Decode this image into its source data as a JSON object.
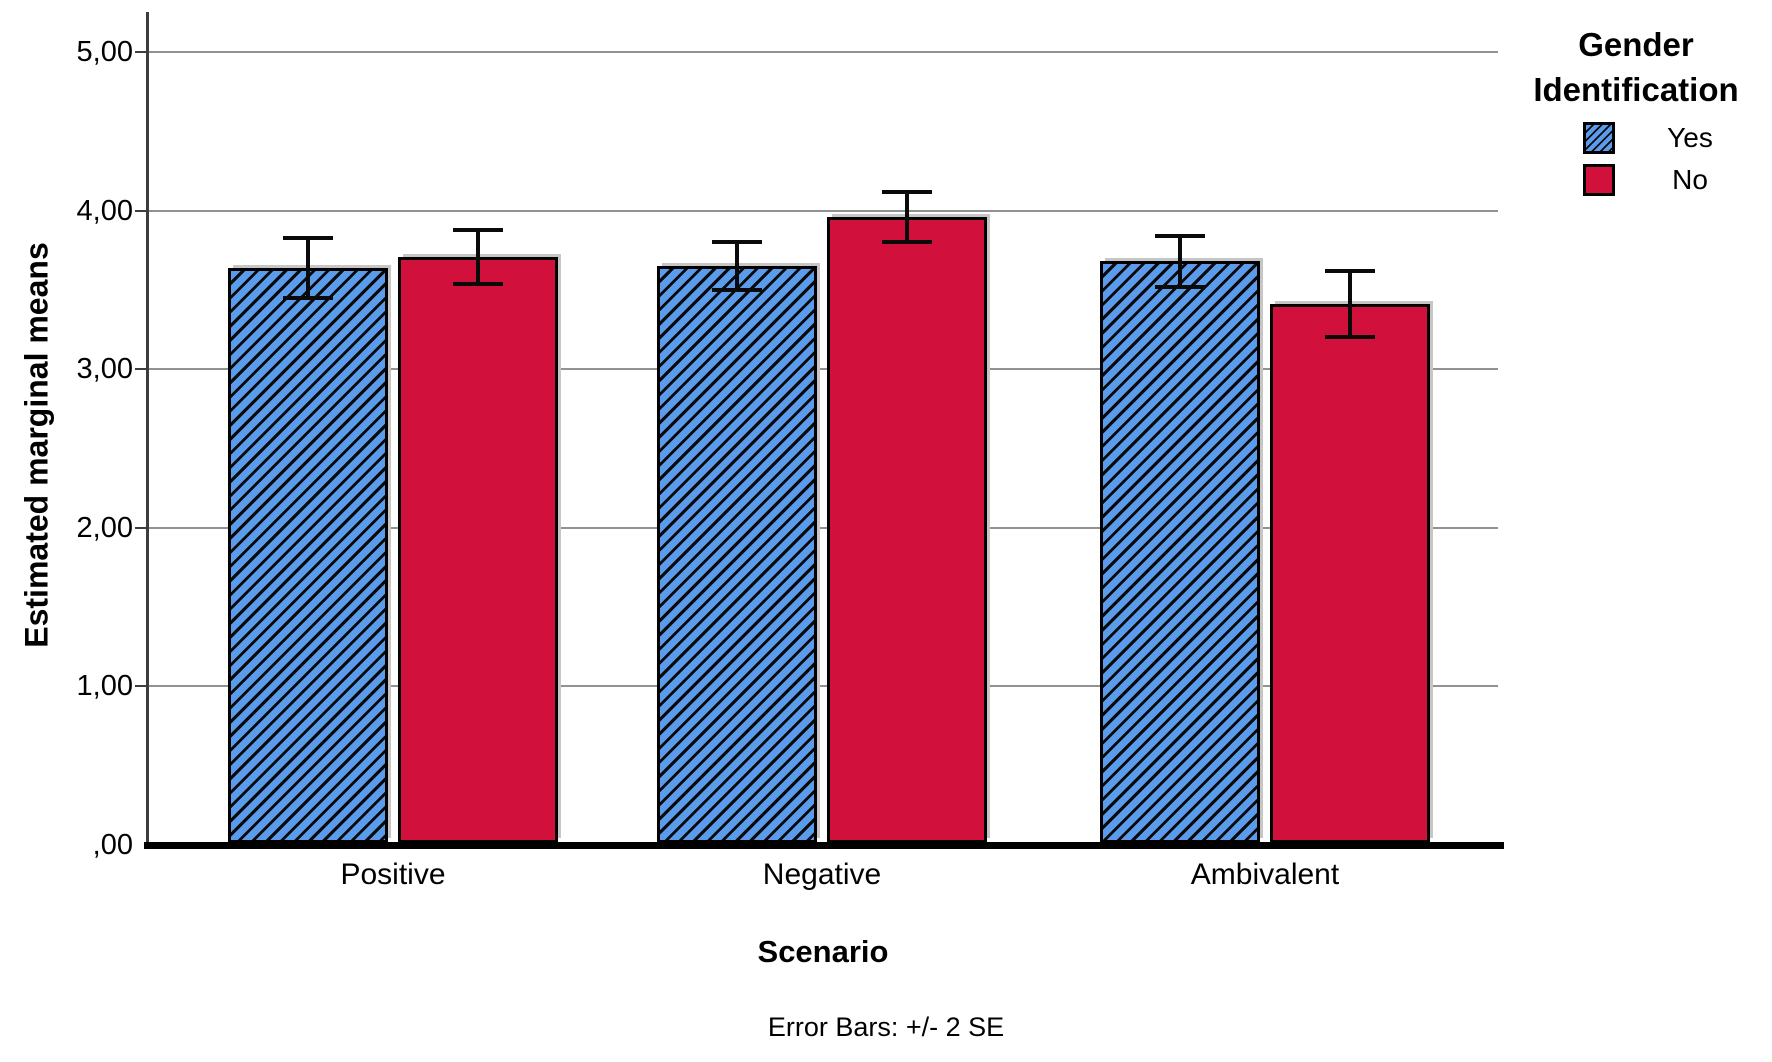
{
  "figure": {
    "y_axis_title": "Estimated marginal means",
    "x_axis_title": "Scenario",
    "footnote": "Error Bars: +/- 2 SE",
    "legend_title_line1": "Gender",
    "legend_title_line2": "Identification"
  },
  "chart_data": {
    "type": "bar",
    "title": "",
    "xlabel": "Scenario",
    "ylabel": "Estimated marginal means",
    "categories": [
      "Positive",
      "Negative",
      "Ambivalent"
    ],
    "series": [
      {
        "name": "Yes",
        "fill": "#5b9beb",
        "hatch": "diagonal-black",
        "values": [
          3.64,
          3.65,
          3.68
        ],
        "error_2se": [
          0.19,
          0.15,
          0.16
        ]
      },
      {
        "name": "No",
        "fill": "#d2103c",
        "hatch": "none",
        "values": [
          3.71,
          3.96,
          3.41
        ],
        "error_2se": [
          0.17,
          0.16,
          0.21
        ]
      }
    ],
    "ylim": [
      0,
      5
    ],
    "y_ticks": [
      0,
      1,
      2,
      3,
      4,
      5
    ],
    "y_tick_labels": [
      ",00",
      "1,00",
      "2,00",
      "3,00",
      "4,00",
      "5,00"
    ],
    "grid": true,
    "legend_title": "Gender Identification",
    "legend_position": "top-right",
    "error_bar_note": "Error Bars: +/- 2 SE",
    "colors": {
      "yes_blue": "#5b9beb",
      "no_red": "#d2103c",
      "gridline_gray": "#919191",
      "axis_dark": "#3d3d3d",
      "baseline_black": "#000000"
    }
  }
}
